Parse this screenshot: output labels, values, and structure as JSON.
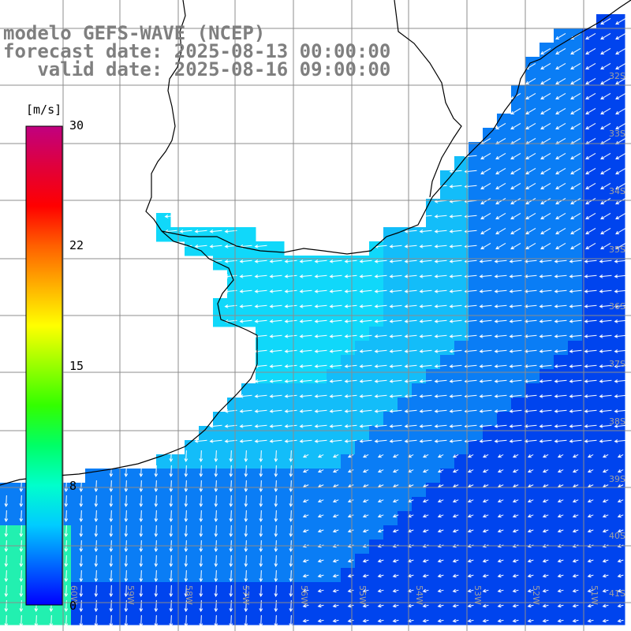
{
  "title": {
    "model": "modelo GEFS-WAVE (NCEP)",
    "forecast": "forecast date: 2025-08-13 00:00:00",
    "valid": "   valid date: 2025-08-16 09:00:00"
  },
  "colorbar": {
    "units": "[m/s]",
    "ticks": [
      "30",
      "22",
      "15",
      "8",
      "0"
    ],
    "tick_values": [
      30,
      22,
      15,
      8,
      0
    ],
    "range": [
      0,
      30
    ],
    "colors": [
      "#0000ff",
      "#0066ff",
      "#00ccff",
      "#00ffcc",
      "#00ff66",
      "#33ff00",
      "#99ff00",
      "#ffff00",
      "#ffb000",
      "#ff6000",
      "#ff0000",
      "#e0003c",
      "#c00080"
    ]
  },
  "map": {
    "lat_labels": [
      "32S",
      "33S",
      "34S",
      "35S",
      "36S",
      "37S",
      "38S",
      "39S",
      "40S",
      "41S"
    ],
    "lon_labels": [
      "60W",
      "59W",
      "58W",
      "57W",
      "56W",
      "55W",
      "54W",
      "53W",
      "52W",
      "51W"
    ],
    "lat_range": [
      -41.3,
      -30.7
    ],
    "lon_range": [
      -60.9,
      -50.2
    ],
    "ocean_colors": {
      "deep": "#0044ee",
      "mid": "#0a7df5",
      "light": "#13bdf9",
      "cyan": "#10d8fa",
      "green": "#22f0b0"
    },
    "land_color": "#ffffff",
    "coast_color": "#000000",
    "grid_color": "#8c8c8c",
    "arrow_color": "#ffffff"
  }
}
